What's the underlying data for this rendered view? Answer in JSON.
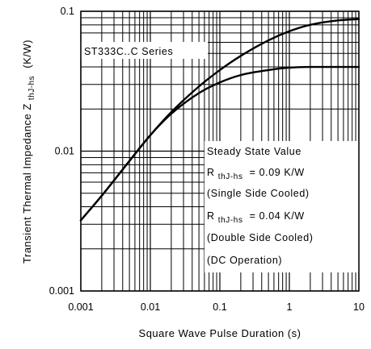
{
  "chart_data": {
    "type": "line",
    "title": "",
    "xlabel": "Square Wave Pulse Duration (s)",
    "ylabel": "Transient Thermal Impedance Z",
    "ylabel_sub": "thJ-hs",
    "ylabel_unit": "(K/W)",
    "x_scale": "log",
    "y_scale": "log",
    "xlim": [
      0.001,
      10
    ],
    "ylim": [
      0.001,
      0.1
    ],
    "x_ticks": [
      0.001,
      0.01,
      0.1,
      1,
      10
    ],
    "x_tick_labels": [
      "0.001",
      "0.01",
      "0.1",
      "1",
      "10"
    ],
    "y_ticks": [
      0.001,
      0.01,
      0.1
    ],
    "y_tick_labels": [
      "0.001",
      "0.01",
      "0.1"
    ],
    "grid": true,
    "series": [
      {
        "points": [
          [
            0.001,
            0.0032
          ],
          [
            0.002,
            0.0048
          ],
          [
            0.005,
            0.0085
          ],
          [
            0.01,
            0.013
          ],
          [
            0.02,
            0.019
          ],
          [
            0.05,
            0.029
          ],
          [
            0.1,
            0.038
          ],
          [
            0.2,
            0.048
          ],
          [
            0.5,
            0.062
          ],
          [
            1,
            0.072
          ],
          [
            2,
            0.08
          ],
          [
            5,
            0.086
          ],
          [
            10,
            0.088
          ]
        ]
      },
      {
        "points": [
          [
            0.001,
            0.0032
          ],
          [
            0.002,
            0.0048
          ],
          [
            0.005,
            0.0085
          ],
          [
            0.01,
            0.013
          ],
          [
            0.02,
            0.0185
          ],
          [
            0.05,
            0.026
          ],
          [
            0.1,
            0.031
          ],
          [
            0.2,
            0.035
          ],
          [
            0.5,
            0.038
          ],
          [
            1,
            0.0395
          ],
          [
            2,
            0.04
          ],
          [
            5,
            0.04
          ],
          [
            10,
            0.04
          ]
        ]
      }
    ],
    "annotations": {
      "series_label": "ST333C..C Series",
      "steady_state_title": "Steady State Value",
      "r_symbol": "R",
      "r_sub": "thJ-hs",
      "r1_value": "= 0.09 K/W",
      "r1_note": "(Single Side Cooled)",
      "r2_value": "= 0.04 K/W",
      "r2_note": "(Double Side Cooled)",
      "dc_note": "(DC Operation)"
    }
  }
}
